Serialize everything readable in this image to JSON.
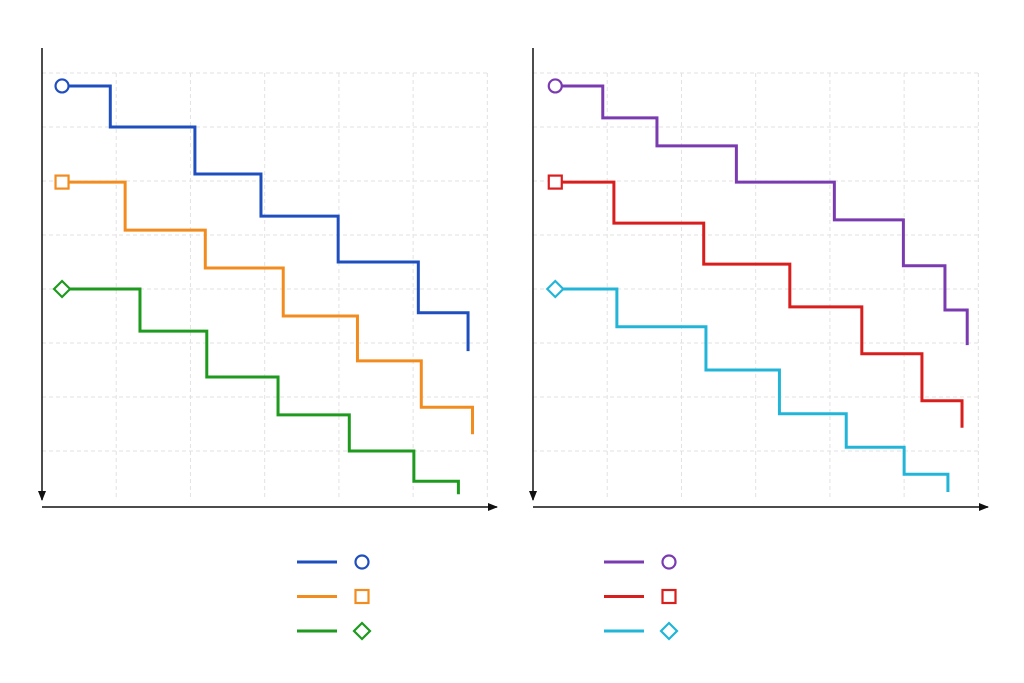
{
  "chart_data": [
    {
      "type": "step",
      "xlim": [
        0,
        6.13
      ],
      "ylim": [
        0,
        8.5
      ],
      "y_inverted": true,
      "xticks": [
        1,
        2,
        3,
        4,
        5,
        6
      ],
      "yticks": [
        0.5,
        1.5,
        2.5,
        3.5,
        4.5,
        5.5,
        6.5,
        7.5
      ],
      "grid": true,
      "series": [
        {
          "color": "#1f4fbf",
          "marker": "circle",
          "x": [
            0.27,
            0.92,
            2.06,
            2.95,
            3.99,
            5.07,
            5.74
          ],
          "values": [
            0.74,
            1.5,
            2.37,
            3.15,
            4.0,
            4.94,
            5.65
          ]
        },
        {
          "color": "#f28c1e",
          "marker": "square",
          "x": [
            0.27,
            1.12,
            2.2,
            3.25,
            4.25,
            5.11,
            5.8
          ],
          "values": [
            2.52,
            3.41,
            4.11,
            5.0,
            5.83,
            6.69,
            7.19
          ]
        },
        {
          "color": "#1e9a1e",
          "marker": "diamond",
          "x": [
            0.27,
            1.32,
            2.22,
            3.18,
            4.14,
            5.01,
            5.61
          ],
          "values": [
            4.5,
            5.28,
            6.13,
            6.83,
            7.5,
            8.06,
            8.3
          ]
        }
      ]
    },
    {
      "type": "step",
      "xlim": [
        0,
        6.13
      ],
      "ylim": [
        0,
        8.5
      ],
      "y_inverted": true,
      "xticks": [
        1,
        2,
        3,
        4,
        5,
        6
      ],
      "yticks": [
        0.5,
        1.5,
        2.5,
        3.5,
        4.5,
        5.5,
        6.5,
        7.5
      ],
      "grid": true,
      "series": [
        {
          "color": "#7b3bb0",
          "marker": "circle",
          "x": [
            0.3,
            0.94,
            1.67,
            2.74,
            4.06,
            4.99,
            5.55,
            5.85
          ],
          "values": [
            0.74,
            1.33,
            1.85,
            2.52,
            3.22,
            4.07,
            4.89,
            5.54
          ]
        },
        {
          "color": "#d91e1e",
          "marker": "square",
          "x": [
            0.3,
            1.09,
            2.3,
            3.46,
            4.43,
            5.24,
            5.78
          ],
          "values": [
            2.52,
            3.28,
            4.04,
            4.83,
            5.7,
            6.57,
            7.07
          ]
        },
        {
          "color": "#22b5d8",
          "marker": "diamond",
          "x": [
            0.3,
            1.13,
            2.33,
            3.32,
            4.22,
            5.0,
            5.59
          ],
          "values": [
            4.5,
            5.2,
            6.0,
            6.81,
            7.43,
            7.93,
            8.26
          ]
        }
      ]
    }
  ]
}
